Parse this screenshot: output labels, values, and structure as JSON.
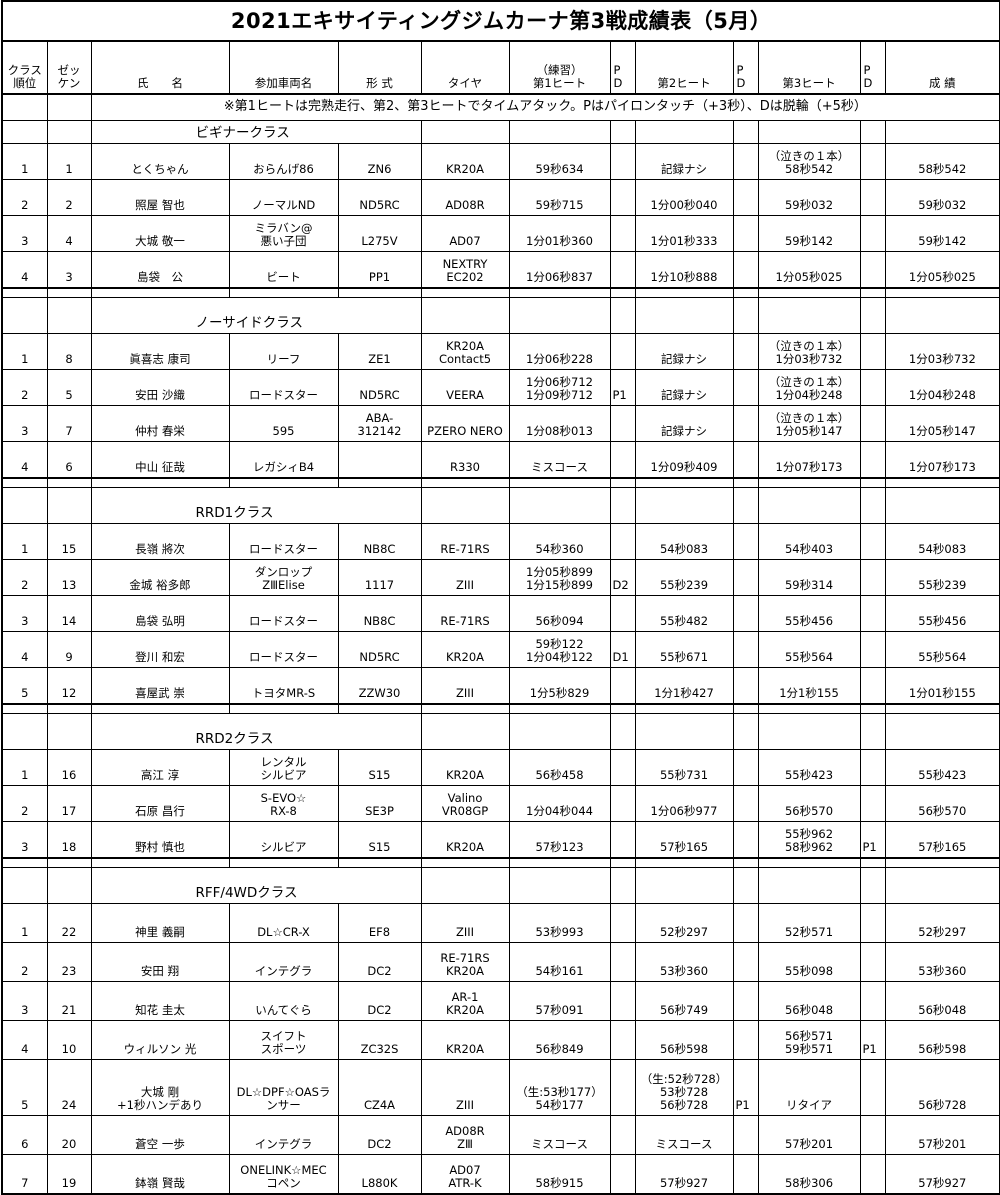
{
  "title": "2021エキサイティングジムカーナ第3戦成績表（5月）",
  "headers": [
    "クラス\n順位",
    "ゼッ\nケン",
    "氏　　名",
    "参加車両名",
    "形 式",
    "タイヤ",
    "（練習）\n第1ヒート",
    "P\nD",
    "第2ヒート",
    "P\nD",
    "第3ヒート",
    "P\nD",
    "成 績"
  ],
  "note": "※第1ヒートは完熟走行、第2、第3ヒートでタイムアタック。Pはパイロンタッチ（+3秒）、Dは脱輪（+5秒）",
  "classes": [
    {
      "name": "ビギナークラス",
      "rows": [
        [
          "1",
          "1",
          "とくちゃん",
          "おらんげ86",
          "ZN6",
          "KR20A",
          "59秒634",
          "",
          "記録ナシ",
          "",
          "（泣きの１本）\n58秒542",
          "",
          "58秒542"
        ],
        [
          "2",
          "2",
          "照屋 智也",
          "ノーマルND",
          "ND5RC",
          "AD08R",
          "59秒715",
          "",
          "1分00秒040",
          "",
          "59秒032",
          "",
          "59秒032"
        ],
        [
          "3",
          "4",
          "大城 敬一",
          "ミラバン@\n悪い子団",
          "L275V",
          "AD07",
          "1分01秒360",
          "",
          "1分01秒333",
          "",
          "59秒142",
          "",
          "59秒142"
        ],
        [
          "4",
          "3",
          "島袋　公",
          "ビート",
          "PP1",
          "NEXTRY\nEC202",
          "1分06秒837",
          "",
          "1分10秒888",
          "",
          "1分05秒025",
          "",
          "1分05秒025"
        ]
      ]
    },
    {
      "name": "ノーサイドクラス",
      "rows": [
        [
          "1",
          "8",
          "眞喜志 康司",
          "リーフ",
          "ZE1",
          "KR20A\nContact5",
          "1分06秒228",
          "",
          "記録ナシ",
          "",
          "（泣きの１本）\n1分03秒732",
          "",
          "1分03秒732"
        ],
        [
          "2",
          "5",
          "安田 沙織",
          "ロードスター",
          "ND5RC",
          "VEERA",
          "1分06秒712\n1分09秒712",
          "P1",
          "記録ナシ",
          "",
          "（泣きの１本）\n1分04秒248",
          "",
          "1分04秒248"
        ],
        [
          "3",
          "7",
          "仲村 春栄",
          "595",
          "ABA-\n312142",
          "PZERO NERO",
          "1分08秒013",
          "",
          "記録ナシ",
          "",
          "（泣きの１本）\n1分05秒147",
          "",
          "1分05秒147"
        ],
        [
          "4",
          "6",
          "中山 征哉",
          "レガシィB4",
          "",
          "R330",
          "ミスコース",
          "",
          "1分09秒409",
          "",
          "1分07秒173",
          "",
          "1分07秒173"
        ]
      ]
    },
    {
      "name": "RRD1クラス",
      "rows": [
        [
          "1",
          "15",
          "長嶺 將次",
          "ロードスター",
          "NB8C",
          "RE-71RS",
          "54秒360",
          "",
          "54秒083",
          "",
          "54秒403",
          "",
          "54秒083"
        ],
        [
          "2",
          "13",
          "金城 裕多郎",
          "ダンロップ\nZⅢElise",
          "1117",
          "ZIII",
          "1分05秒899\n1分15秒899",
          "D2",
          "55秒239",
          "",
          "59秒314",
          "",
          "55秒239"
        ],
        [
          "3",
          "14",
          "島袋 弘明",
          "ロードスター",
          "NB8C",
          "RE-71RS",
          "56秒094",
          "",
          "55秒482",
          "",
          "55秒456",
          "",
          "55秒456"
        ],
        [
          "4",
          "9",
          "登川 和宏",
          "ロードスター",
          "ND5RC",
          "KR20A",
          "59秒122\n1分04秒122",
          "D1",
          "55秒671",
          "",
          "55秒564",
          "",
          "55秒564"
        ],
        [
          "5",
          "12",
          "喜屋武 崇",
          "トヨタMR-S",
          "ZZW30",
          "ZIII",
          "1分5秒829",
          "",
          "1分1秒427",
          "",
          "1分1秒155",
          "",
          "1分01秒155"
        ]
      ]
    },
    {
      "name": "RRD2クラス",
      "rows": [
        [
          "1",
          "16",
          "高江 淳",
          "レンタル\nシルビア",
          "S15",
          "KR20A",
          "56秒458",
          "",
          "55秒731",
          "",
          "55秒423",
          "",
          "55秒423"
        ],
        [
          "2",
          "17",
          "石原 昌行",
          "S-EVO☆\nRX-8",
          "SE3P",
          "Valino\nVR08GP",
          "1分04秒044",
          "",
          "1分06秒977",
          "",
          "56秒570",
          "",
          "56秒570"
        ],
        [
          "3",
          "18",
          "野村 慎也",
          "シルビア",
          "S15",
          "KR20A",
          "57秒123",
          "",
          "57秒165",
          "",
          "55秒962\n58秒962",
          "P1",
          "57秒165"
        ]
      ]
    },
    {
      "name": "RFF/4WDクラス",
      "rows": [
        [
          "1",
          "22",
          "神里 義嗣",
          "DL☆CR-X",
          "EF8",
          "ZIII",
          "53秒993",
          "",
          "52秒297",
          "",
          "52秒571",
          "",
          "52秒297"
        ],
        [
          "2",
          "23",
          "安田 翔",
          "インテグラ",
          "DC2",
          "RE-71RS\nKR20A",
          "54秒161",
          "",
          "53秒360",
          "",
          "55秒098",
          "",
          "53秒360"
        ],
        [
          "3",
          "21",
          "知花 圭太",
          "いんてぐら",
          "DC2",
          "AR-1\nKR20A",
          "57秒091",
          "",
          "56秒749",
          "",
          "56秒048",
          "",
          "56秒048"
        ],
        [
          "4",
          "10",
          "ウィルソン 光",
          "スイフト\nスポーツ",
          "ZC32S",
          "KR20A",
          "56秒849",
          "",
          "56秒598",
          "",
          "56秒571\n59秒571",
          "P1",
          "56秒598"
        ],
        [
          "5",
          "24",
          "大城 剛\n+1秒ハンデあり",
          "DL☆DPF☆OASラ\nンサー",
          "CZ4A",
          "ZIII",
          "（生:53秒177）\n54秒177",
          "",
          "（生:52秒728）\n53秒728\n56秒728",
          "P1",
          "リタイア",
          "",
          "56秒728"
        ],
        [
          "6",
          "20",
          "蒼空 一歩",
          "インテグラ",
          "DC2",
          "AD08R\nZⅢ",
          "ミスコース",
          "",
          "ミスコース",
          "",
          "57秒201",
          "",
          "57秒201"
        ],
        [
          "7",
          "19",
          "鉢嶺 賢哉",
          "ONELINK☆MEC\nコペン",
          "L880K",
          "AD07\nATR-K",
          "58秒915",
          "",
          "57秒927",
          "",
          "58秒306",
          "",
          "57秒927"
        ]
      ]
    }
  ]
}
